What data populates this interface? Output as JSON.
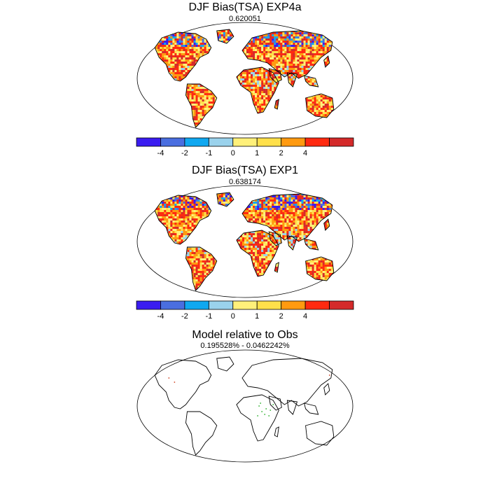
{
  "panels": [
    {
      "title": "DJF Bias(TSA) EXP4a",
      "subtitle": "0.620051",
      "pattern": "bias"
    },
    {
      "title": "DJF Bias(TSA) EXP1",
      "subtitle": "0.638174",
      "pattern": "bias"
    },
    {
      "title": "Model relative to Obs",
      "subtitle": "0.195528% - 0.0462242%",
      "pattern": "relative"
    }
  ],
  "colorbar": {
    "colors": [
      "#3a1cf0",
      "#4a6ee0",
      "#10a8f0",
      "#9ad2ec",
      "#fff07a",
      "#ffe04a",
      "#ff9a10",
      "#ff2a10",
      "#d42a2a"
    ],
    "labels": [
      "-4",
      "-2",
      "-1",
      "0",
      "1",
      "2",
      "4"
    ]
  }
}
